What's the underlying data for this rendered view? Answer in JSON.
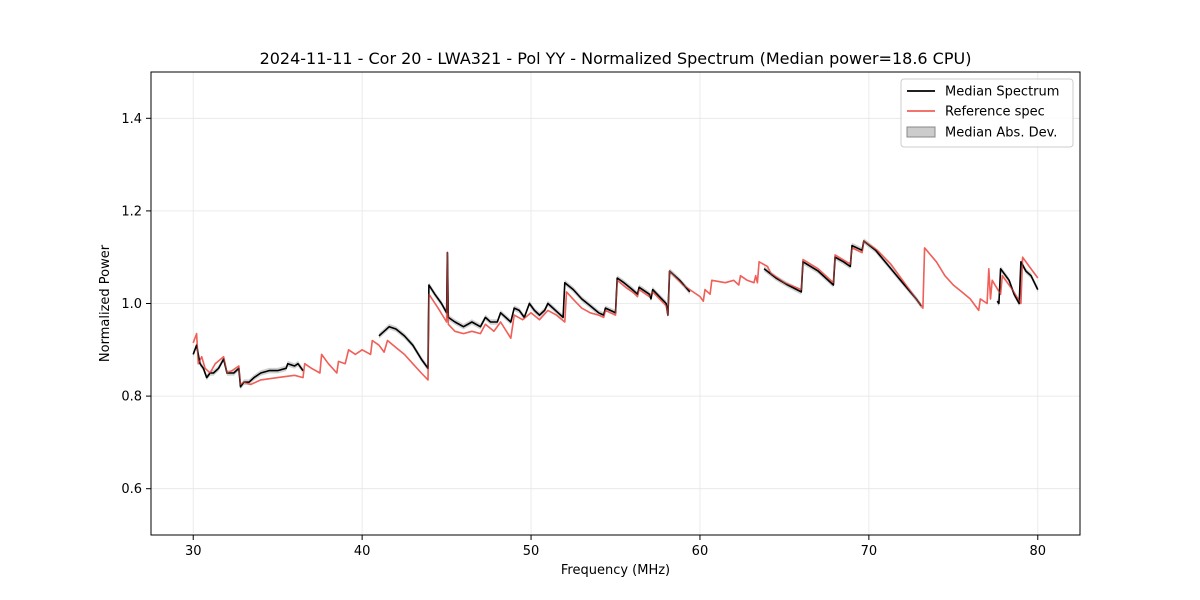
{
  "chart_data": {
    "type": "line",
    "title": "2024-11-11 - Cor 20 - LWA321 - Pol YY - Normalized Spectrum (Median power=18.6 CPU)",
    "xlabel": "Frequency (MHz)",
    "ylabel": "Normalized Power",
    "xlim": [
      27.5,
      82.5
    ],
    "ylim": [
      0.5,
      1.5
    ],
    "xticks": [
      30,
      40,
      50,
      60,
      70,
      80
    ],
    "yticks": [
      0.6,
      0.8,
      1.0,
      1.2,
      1.4
    ],
    "xtick_labels": [
      "30",
      "40",
      "50",
      "60",
      "70",
      "80"
    ],
    "ytick_labels": [
      "0.6",
      "0.8",
      "1.0",
      "1.2",
      "1.4"
    ],
    "grid": true,
    "legend_position": "top-right",
    "legend": [
      "Median Spectrum",
      "Reference spec",
      "Median Abs. Dev."
    ],
    "colors": {
      "median": "#000000",
      "reference": "#f0605a",
      "mad": "#aaaaaa"
    },
    "series": [
      {
        "name": "Median Spectrum",
        "segments": [
          [
            [
              30.0,
              0.89
            ],
            [
              30.2,
              0.91
            ],
            [
              30.4,
              0.87
            ],
            [
              30.6,
              0.86
            ],
            [
              30.8,
              0.84
            ],
            [
              31.0,
              0.85
            ],
            [
              31.2,
              0.85
            ],
            [
              31.5,
              0.86
            ],
            [
              31.8,
              0.88
            ],
            [
              32.0,
              0.85
            ],
            [
              32.2,
              0.85
            ],
            [
              32.4,
              0.85
            ],
            [
              32.7,
              0.86
            ],
            [
              32.8,
              0.82
            ],
            [
              33.0,
              0.83
            ],
            [
              33.3,
              0.83
            ],
            [
              33.6,
              0.84
            ],
            [
              34.0,
              0.85
            ],
            [
              34.5,
              0.855
            ],
            [
              35.0,
              0.855
            ],
            [
              35.5,
              0.86
            ],
            [
              35.6,
              0.87
            ],
            [
              36.0,
              0.865
            ],
            [
              36.2,
              0.87
            ],
            [
              36.5,
              0.855
            ]
          ],
          [
            [
              41.0,
              0.93
            ],
            [
              41.3,
              0.94
            ],
            [
              41.6,
              0.95
            ],
            [
              42.0,
              0.945
            ],
            [
              42.5,
              0.93
            ],
            [
              43.0,
              0.91
            ],
            [
              43.5,
              0.88
            ],
            [
              43.9,
              0.86
            ],
            [
              43.95,
              1.04
            ],
            [
              44.3,
              1.02
            ],
            [
              44.7,
              1.0
            ],
            [
              45.0,
              0.98
            ],
            [
              45.05,
              1.11
            ],
            [
              45.1,
              0.97
            ],
            [
              45.5,
              0.96
            ],
            [
              46.0,
              0.95
            ],
            [
              46.5,
              0.96
            ],
            [
              47.0,
              0.95
            ],
            [
              47.3,
              0.97
            ],
            [
              47.6,
              0.96
            ],
            [
              48.0,
              0.96
            ],
            [
              48.2,
              0.98
            ],
            [
              48.5,
              0.97
            ],
            [
              48.8,
              0.96
            ],
            [
              49.0,
              0.99
            ],
            [
              49.3,
              0.985
            ],
            [
              49.6,
              0.97
            ],
            [
              49.9,
              1.0
            ],
            [
              50.2,
              0.985
            ],
            [
              50.5,
              0.975
            ],
            [
              50.8,
              0.985
            ],
            [
              51.0,
              1.0
            ],
            [
              51.3,
              0.99
            ],
            [
              51.6,
              0.98
            ],
            [
              51.9,
              0.97
            ],
            [
              52.0,
              1.045
            ],
            [
              52.5,
              1.03
            ],
            [
              53.0,
              1.01
            ],
            [
              53.5,
              0.995
            ],
            [
              54.0,
              0.98
            ],
            [
              54.3,
              0.975
            ],
            [
              54.4,
              0.99
            ],
            [
              54.7,
              0.985
            ],
            [
              55.0,
              0.98
            ],
            [
              55.1,
              1.055
            ],
            [
              55.5,
              1.045
            ],
            [
              56.0,
              1.03
            ],
            [
              56.3,
              1.02
            ],
            [
              56.4,
              1.035
            ],
            [
              57.0,
              1.02
            ],
            [
              57.1,
              1.01
            ],
            [
              57.2,
              1.03
            ],
            [
              57.6,
              1.015
            ],
            [
              58.0,
              1.0
            ],
            [
              58.1,
              0.975
            ],
            [
              58.2,
              1.07
            ],
            [
              58.8,
              1.05
            ],
            [
              59.4,
              1.025
            ]
          ],
          [
            [
              63.8,
              1.075
            ],
            [
              64.5,
              1.055
            ],
            [
              65.2,
              1.04
            ],
            [
              66.0,
              1.025
            ],
            [
              66.1,
              1.09
            ],
            [
              67.0,
              1.07
            ],
            [
              67.9,
              1.04
            ],
            [
              68.0,
              1.1
            ],
            [
              68.5,
              1.09
            ],
            [
              68.9,
              1.08
            ],
            [
              69.0,
              1.125
            ],
            [
              69.6,
              1.115
            ],
            [
              69.7,
              1.135
            ],
            [
              70.4,
              1.115
            ],
            [
              71.2,
              1.08
            ],
            [
              72.0,
              1.045
            ],
            [
              72.8,
              1.01
            ],
            [
              73.1,
              0.995
            ]
          ],
          [
            [
              77.6,
              1.005
            ],
            [
              77.7,
              1.0
            ],
            [
              77.8,
              1.075
            ],
            [
              78.3,
              1.05
            ],
            [
              78.6,
              1.02
            ],
            [
              78.9,
              1.0
            ],
            [
              79.0,
              1.09
            ],
            [
              79.3,
              1.07
            ],
            [
              79.6,
              1.06
            ],
            [
              80.0,
              1.03
            ]
          ]
        ]
      },
      {
        "name": "Reference spec",
        "segments": [
          [
            [
              30.0,
              0.915
            ],
            [
              30.2,
              0.935
            ],
            [
              30.3,
              0.87
            ],
            [
              30.5,
              0.885
            ],
            [
              30.7,
              0.86
            ],
            [
              31.0,
              0.85
            ],
            [
              31.3,
              0.87
            ],
            [
              31.8,
              0.885
            ],
            [
              32.0,
              0.85
            ],
            [
              32.3,
              0.855
            ],
            [
              32.7,
              0.865
            ],
            [
              32.8,
              0.825
            ],
            [
              33.0,
              0.83
            ],
            [
              33.4,
              0.825
            ],
            [
              34.0,
              0.835
            ],
            [
              35.0,
              0.84
            ],
            [
              36.0,
              0.845
            ],
            [
              36.5,
              0.84
            ],
            [
              36.6,
              0.87
            ],
            [
              37.0,
              0.86
            ],
            [
              37.5,
              0.85
            ],
            [
              37.6,
              0.89
            ],
            [
              38.0,
              0.87
            ],
            [
              38.5,
              0.85
            ],
            [
              38.6,
              0.875
            ],
            [
              39.0,
              0.87
            ],
            [
              39.2,
              0.9
            ],
            [
              39.6,
              0.89
            ],
            [
              40.0,
              0.9
            ],
            [
              40.5,
              0.89
            ],
            [
              40.6,
              0.92
            ],
            [
              41.0,
              0.91
            ],
            [
              41.3,
              0.895
            ],
            [
              41.5,
              0.92
            ],
            [
              42.0,
              0.905
            ],
            [
              42.5,
              0.89
            ],
            [
              43.0,
              0.87
            ],
            [
              43.5,
              0.85
            ],
            [
              43.9,
              0.835
            ],
            [
              43.95,
              1.02
            ],
            [
              44.5,
              0.99
            ],
            [
              45.0,
              0.96
            ],
            [
              45.05,
              1.11
            ],
            [
              45.1,
              0.955
            ],
            [
              45.5,
              0.94
            ],
            [
              46.0,
              0.935
            ],
            [
              46.5,
              0.94
            ],
            [
              47.0,
              0.935
            ],
            [
              47.3,
              0.955
            ],
            [
              47.8,
              0.94
            ],
            [
              48.2,
              0.96
            ],
            [
              48.8,
              0.925
            ],
            [
              49.0,
              0.975
            ],
            [
              49.5,
              0.965
            ],
            [
              50.0,
              0.98
            ],
            [
              50.5,
              0.965
            ],
            [
              51.0,
              0.985
            ],
            [
              51.5,
              0.975
            ],
            [
              52.0,
              0.96
            ],
            [
              52.1,
              1.025
            ],
            [
              52.6,
              1.005
            ],
            [
              53.0,
              0.99
            ],
            [
              53.5,
              0.98
            ],
            [
              54.0,
              0.975
            ],
            [
              54.3,
              0.97
            ],
            [
              54.4,
              0.985
            ],
            [
              55.0,
              0.975
            ],
            [
              55.1,
              1.05
            ],
            [
              55.6,
              1.035
            ],
            [
              56.0,
              1.025
            ],
            [
              56.3,
              1.015
            ],
            [
              56.4,
              1.03
            ],
            [
              57.0,
              1.015
            ],
            [
              57.2,
              1.025
            ],
            [
              58.0,
              0.995
            ],
            [
              58.1,
              0.975
            ],
            [
              58.2,
              1.07
            ],
            [
              59.0,
              1.04
            ],
            [
              60.0,
              1.015
            ],
            [
              60.2,
              1.005
            ],
            [
              60.3,
              1.03
            ],
            [
              60.6,
              1.02
            ],
            [
              60.7,
              1.05
            ],
            [
              61.5,
              1.045
            ],
            [
              62.0,
              1.05
            ],
            [
              62.3,
              1.04
            ],
            [
              62.4,
              1.06
            ],
            [
              62.8,
              1.05
            ],
            [
              63.2,
              1.045
            ],
            [
              63.3,
              1.06
            ],
            [
              63.4,
              1.045
            ],
            [
              63.5,
              1.09
            ],
            [
              64.0,
              1.08
            ],
            [
              64.2,
              1.065
            ],
            [
              65.0,
              1.045
            ],
            [
              66.0,
              1.03
            ],
            [
              66.1,
              1.095
            ],
            [
              67.0,
              1.075
            ],
            [
              67.9,
              1.045
            ],
            [
              68.0,
              1.105
            ],
            [
              68.9,
              1.085
            ],
            [
              69.0,
              1.12
            ],
            [
              69.6,
              1.11
            ],
            [
              69.7,
              1.135
            ],
            [
              70.5,
              1.115
            ],
            [
              71.3,
              1.085
            ],
            [
              72.0,
              1.05
            ],
            [
              72.7,
              1.015
            ],
            [
              73.2,
              0.99
            ],
            [
              73.3,
              1.12
            ],
            [
              74.0,
              1.09
            ],
            [
              74.5,
              1.06
            ],
            [
              75.0,
              1.04
            ],
            [
              75.5,
              1.025
            ],
            [
              76.0,
              1.01
            ],
            [
              76.5,
              0.985
            ],
            [
              76.6,
              1.01
            ],
            [
              77.0,
              1.0
            ],
            [
              77.1,
              1.075
            ],
            [
              77.2,
              1.01
            ],
            [
              77.3,
              1.05
            ],
            [
              77.8,
              1.02
            ],
            [
              77.9,
              1.06
            ],
            [
              78.5,
              1.03
            ],
            [
              79.0,
              1.0
            ],
            [
              79.1,
              1.1
            ],
            [
              79.5,
              1.08
            ],
            [
              80.0,
              1.055
            ]
          ]
        ]
      }
    ]
  }
}
